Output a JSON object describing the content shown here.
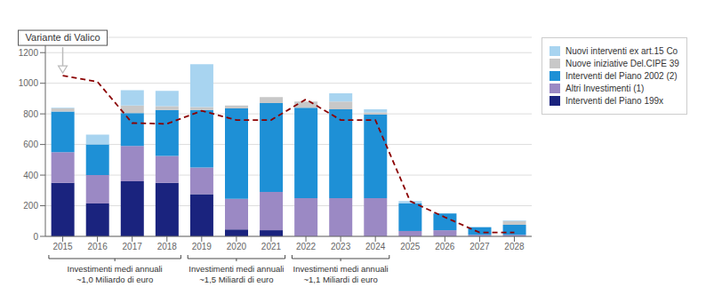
{
  "chart_data": {
    "type": "bar",
    "stacked": true,
    "grid": true,
    "legend": "right",
    "categories": [
      "2015",
      "2016",
      "2017",
      "2018",
      "2019",
      "2020",
      "2021",
      "2022",
      "2023",
      "2024",
      "2025",
      "2026",
      "2027",
      "2028"
    ],
    "series": [
      {
        "name": "Interventi del Piano 199x",
        "color": "#1a237e",
        "values": [
          350,
          215,
          360,
          350,
          275,
          45,
          40,
          0,
          0,
          0,
          0,
          0,
          0,
          0
        ]
      },
      {
        "name": "Altri Investimenti (1)",
        "color": "#9b89c4",
        "values": [
          200,
          185,
          230,
          175,
          175,
          200,
          250,
          250,
          250,
          250,
          35,
          40,
          10,
          10
        ]
      },
      {
        "name": "Interventi del Piano 2002 (2)",
        "color": "#1e90d6",
        "values": [
          265,
          200,
          215,
          300,
          375,
          590,
          580,
          590,
          580,
          545,
          180,
          110,
          50,
          65
        ]
      },
      {
        "name": "Nuove iniziative Del.CIPE 39",
        "color": "#c8c8c8",
        "values": [
          20,
          0,
          50,
          25,
          20,
          20,
          40,
          40,
          50,
          15,
          0,
          0,
          0,
          25
        ]
      },
      {
        "name": "Nuovi interventi ex art.15 Co",
        "color": "#a8d4f0",
        "values": [
          5,
          65,
          100,
          100,
          280,
          0,
          0,
          0,
          55,
          20,
          15,
          0,
          0,
          5
        ]
      },
      {
        "type": "line",
        "color": "#8b0000",
        "line_style": "dashed",
        "values": [
          1050,
          1010,
          740,
          735,
          820,
          760,
          760,
          895,
          760,
          760,
          230,
          125,
          25,
          25
        ]
      }
    ],
    "ylim": [
      0,
      1300
    ],
    "yticks": [
      0,
      200,
      400,
      600,
      800,
      1000,
      1200
    ],
    "annotations": [
      {
        "text": "Variante di Valico",
        "category": "2015"
      },
      {
        "text": [
          "Investimenti medi annuali",
          "~1,0 Miliardo di euro"
        ],
        "from": "2015",
        "to": "2018"
      },
      {
        "text": [
          "Investimenti medi annuali",
          "~1,5 Miliardi di euro"
        ],
        "from": "2019",
        "to": "2021"
      },
      {
        "text": [
          "Investimenti medi annuali",
          "~1,1 Miliardi di euro"
        ],
        "from": "2022",
        "to": "2024"
      }
    ]
  }
}
